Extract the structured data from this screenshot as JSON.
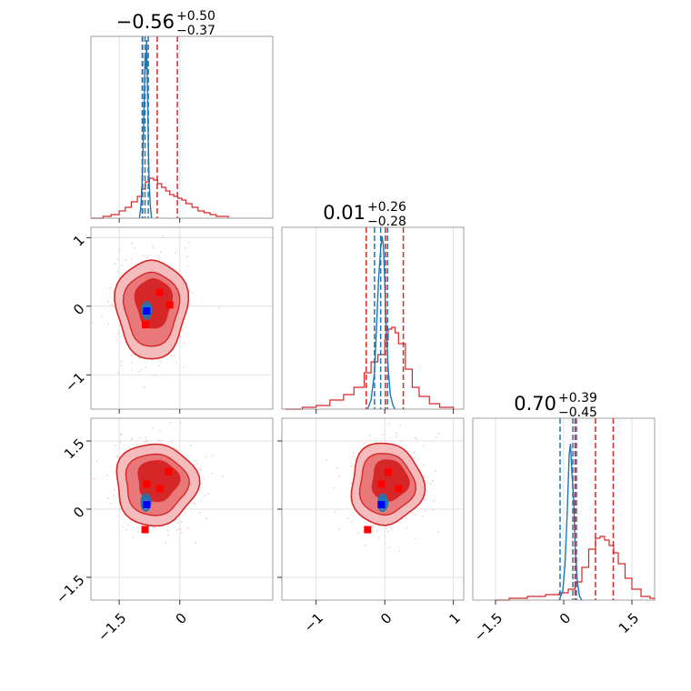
{
  "chart_data": {
    "type": "scatter",
    "title": "",
    "colors": {
      "red": "#d62728",
      "red_mid": "#e8787a",
      "red_light": "#f4bcbd",
      "blue": "#1f77b4",
      "marker_red": "#ff0000",
      "marker_blue": "#0000ff"
    },
    "params": [
      {
        "range": [
          -2.2,
          2.3
        ],
        "ticks": [
          -1.5,
          0.0
        ],
        "title": {
          "main": "−0.56",
          "plus": "+0.50",
          "minus": "−0.37"
        },
        "red_quantiles": [
          -0.93,
          -0.56,
          -0.06
        ],
        "blue_quantiles": [
          -0.92,
          -0.86,
          -0.78
        ],
        "red_hist": [
          [
            -2.2,
            0
          ],
          [
            -1.9,
            0.01
          ],
          [
            -1.7,
            0.02
          ],
          [
            -1.5,
            0.04
          ],
          [
            -1.35,
            0.06
          ],
          [
            -1.2,
            0.09
          ],
          [
            -1.05,
            0.12
          ],
          [
            -0.95,
            0.16
          ],
          [
            -0.85,
            0.2
          ],
          [
            -0.75,
            0.22
          ],
          [
            -0.65,
            0.21
          ],
          [
            -0.55,
            0.19
          ],
          [
            -0.45,
            0.17
          ],
          [
            -0.35,
            0.15
          ],
          [
            -0.25,
            0.13
          ],
          [
            -0.15,
            0.12
          ],
          [
            -0.05,
            0.11
          ],
          [
            0.05,
            0.1
          ],
          [
            0.15,
            0.08
          ],
          [
            0.3,
            0.06
          ],
          [
            0.45,
            0.04
          ],
          [
            0.6,
            0.03
          ],
          [
            0.75,
            0.02
          ],
          [
            0.9,
            0.01
          ],
          [
            1.2,
            0.0
          ]
        ],
        "blue_hist": [
          [
            -1.0,
            0
          ],
          [
            -0.97,
            0.05
          ],
          [
            -0.94,
            0.15
          ],
          [
            -0.91,
            0.38
          ],
          [
            -0.88,
            0.65
          ],
          [
            -0.86,
            0.9
          ],
          [
            -0.84,
            0.82
          ],
          [
            -0.82,
            0.98
          ],
          [
            -0.8,
            0.7
          ],
          [
            -0.78,
            0.42
          ],
          [
            -0.76,
            0.2
          ],
          [
            -0.73,
            0.07
          ],
          [
            -0.7,
            0
          ]
        ]
      },
      {
        "range": [
          -1.5,
          1.15
        ],
        "ticks": [
          -1,
          0,
          1
        ],
        "title": {
          "main": "0.01",
          "plus": "+0.26",
          "minus": "−0.28"
        },
        "red_quantiles": [
          -0.27,
          0.01,
          0.27
        ],
        "blue_quantiles": [
          -0.15,
          -0.06,
          0.04
        ],
        "red_hist": [
          [
            -1.45,
            0
          ],
          [
            -1.2,
            0.01
          ],
          [
            -1.0,
            0.02
          ],
          [
            -0.8,
            0.05
          ],
          [
            -0.6,
            0.08
          ],
          [
            -0.45,
            0.12
          ],
          [
            -0.3,
            0.2
          ],
          [
            -0.2,
            0.26
          ],
          [
            -0.1,
            0.3
          ],
          [
            0.0,
            0.38
          ],
          [
            0.05,
            0.44
          ],
          [
            0.1,
            0.45
          ],
          [
            0.15,
            0.42
          ],
          [
            0.2,
            0.36
          ],
          [
            0.3,
            0.22
          ],
          [
            0.4,
            0.12
          ],
          [
            0.5,
            0.07
          ],
          [
            0.65,
            0.03
          ],
          [
            0.8,
            0.01
          ],
          [
            1.0,
            0
          ]
        ],
        "blue_hist": [
          [
            -0.25,
            0
          ],
          [
            -0.2,
            0.05
          ],
          [
            -0.15,
            0.2
          ],
          [
            -0.12,
            0.45
          ],
          [
            -0.09,
            0.72
          ],
          [
            -0.06,
            0.88
          ],
          [
            -0.04,
            0.95
          ],
          [
            -0.02,
            0.9
          ],
          [
            0.0,
            0.7
          ],
          [
            0.02,
            0.45
          ],
          [
            0.05,
            0.22
          ],
          [
            0.08,
            0.08
          ],
          [
            0.12,
            0.02
          ],
          [
            0.15,
            0
          ]
        ]
      },
      {
        "range": [
          -2.0,
          2.0
        ],
        "ticks": [
          -1.5,
          0.0,
          1.5
        ],
        "title": {
          "main": "0.70",
          "plus": "+0.39",
          "minus": "−0.45"
        },
        "red_quantiles": [
          0.25,
          0.7,
          1.09
        ],
        "blue_quantiles": [
          -0.08,
          0.2,
          0.28
        ],
        "red_hist": [
          [
            -1.5,
            0
          ],
          [
            -1.2,
            0.01
          ],
          [
            -0.8,
            0.02
          ],
          [
            -0.4,
            0.03
          ],
          [
            -0.1,
            0.04
          ],
          [
            0.1,
            0.06
          ],
          [
            0.25,
            0.1
          ],
          [
            0.4,
            0.18
          ],
          [
            0.55,
            0.28
          ],
          [
            0.7,
            0.34
          ],
          [
            0.8,
            0.35
          ],
          [
            0.9,
            0.33
          ],
          [
            1.0,
            0.3
          ],
          [
            1.1,
            0.26
          ],
          [
            1.2,
            0.2
          ],
          [
            1.35,
            0.12
          ],
          [
            1.5,
            0.06
          ],
          [
            1.7,
            0.02
          ],
          [
            1.9,
            0.01
          ],
          [
            2.0,
            0
          ]
        ],
        "blue_hist": [
          [
            -0.1,
            0
          ],
          [
            -0.02,
            0.05
          ],
          [
            0.03,
            0.2
          ],
          [
            0.08,
            0.5
          ],
          [
            0.12,
            0.8
          ],
          [
            0.15,
            0.86
          ],
          [
            0.18,
            0.7
          ],
          [
            0.22,
            0.55
          ],
          [
            0.25,
            0.3
          ],
          [
            0.3,
            0.1
          ],
          [
            0.35,
            0.02
          ],
          [
            0.4,
            0
          ]
        ]
      }
    ],
    "pairs": [
      {
        "x": 0,
        "y": 1,
        "center": [
          -0.7,
          -0.03
        ],
        "spread": [
          0.42,
          0.36
        ],
        "red_squares": [
          [
            -0.5,
            0.2
          ],
          [
            -0.25,
            0.02
          ],
          [
            -0.85,
            -0.27
          ]
        ],
        "blue_square": [
          -0.82,
          -0.07
        ],
        "blue_center": [
          -0.82,
          -0.06
        ]
      },
      {
        "x": 0,
        "y": 2,
        "center": [
          -0.6,
          0.55
        ],
        "spread": [
          0.48,
          0.45
        ],
        "red_squares": [
          [
            -0.28,
            0.82
          ],
          [
            -0.82,
            0.55
          ],
          [
            -0.5,
            0.45
          ],
          [
            -0.86,
            -0.45
          ]
        ],
        "blue_square": [
          -0.82,
          0.1
        ],
        "blue_center": [
          -0.84,
          0.15
        ]
      },
      {
        "x": 1,
        "y": 2,
        "center": [
          0.02,
          0.55
        ],
        "spread": [
          0.25,
          0.45
        ],
        "red_squares": [
          [
            0.05,
            0.82
          ],
          [
            -0.05,
            0.55
          ],
          [
            0.2,
            0.45
          ],
          [
            -0.25,
            -0.45
          ]
        ],
        "blue_square": [
          -0.05,
          0.1
        ],
        "blue_center": [
          -0.03,
          0.14
        ]
      }
    ]
  }
}
